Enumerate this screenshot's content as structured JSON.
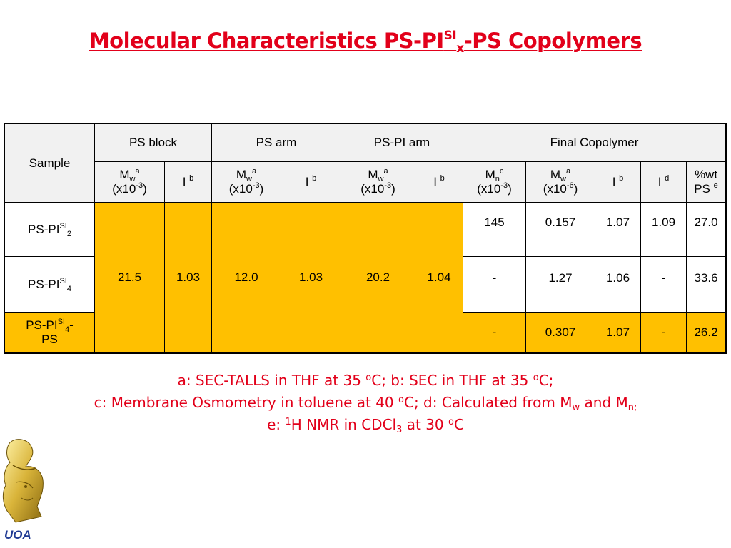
{
  "title": {
    "pre": "Molecular Characteristics PS-PI",
    "sup": "SI",
    "sub": "x",
    "post": "-PS Copolymers"
  },
  "table": {
    "sample_header": "Sample",
    "groups": {
      "ps_block": "PS block",
      "ps_arm": "PS arm",
      "pspi_arm": "PS-PI arm",
      "final": "Final Copolymer"
    },
    "sub": {
      "M": "M",
      "w": "w",
      "n": "n",
      "a": "a",
      "b": "b",
      "c": "c",
      "d": "d",
      "e": "e",
      "I": "I",
      "x10_neg3_pre": "(x10",
      "neg3": "-3",
      "neg6": "-6",
      "close": ")",
      "wt": "%wt",
      "ps": "PS"
    },
    "rows": [
      {
        "name_pre": "PS-PI",
        "name_sup": "SI",
        "name_sub": "2",
        "name_post": "",
        "mn": "145",
        "mw": "0.157",
        "i_b": "1.07",
        "i_d": "1.09",
        "wt": "27.0"
      },
      {
        "name_pre": "PS-PI",
        "name_sup": "SI",
        "name_sub": "4",
        "name_post": "",
        "mn": "-",
        "mw": "1.27",
        "i_b": "1.06",
        "i_d": "-",
        "wt": "33.6"
      },
      {
        "name_pre": "PS-PI",
        "name_sup": "SI",
        "name_sub": "4",
        "name_post": "-",
        "name_line2": "PS",
        "mn": "-",
        "mw": "0.307",
        "i_b": "1.07",
        "i_d": "-",
        "wt": "26.2"
      }
    ],
    "merged": {
      "ps_block_mw": "21.5",
      "ps_block_i": "1.03",
      "ps_arm_mw": "12.0",
      "ps_arm_i": "1.03",
      "pspi_arm_mw": "20.2",
      "pspi_arm_i": "1.04"
    }
  },
  "notes": {
    "l1a": "a: SEC-TALLS in THF at 35 ",
    "o": "o",
    "l1b": "C; b: SEC in THF at 35 ",
    "l1c": "C;",
    "l2a": "c: Membrane Osmometry in toluene at 40 ",
    "l2b": "C; d: Calculated from M",
    "w": "w",
    "l2c": " and M",
    "n": "n;",
    "l3a": "e: ",
    "one": "1",
    "l3b": "H NMR in CDCl",
    "three": "3",
    "l3c": " at 30 ",
    "l3d": "C"
  },
  "logo": {
    "text": "UOA"
  },
  "colors": {
    "title": "#e2001a",
    "highlight": "#ffc000",
    "header_bg": "#f1f1f1",
    "logo_text": "#1f3a93"
  }
}
